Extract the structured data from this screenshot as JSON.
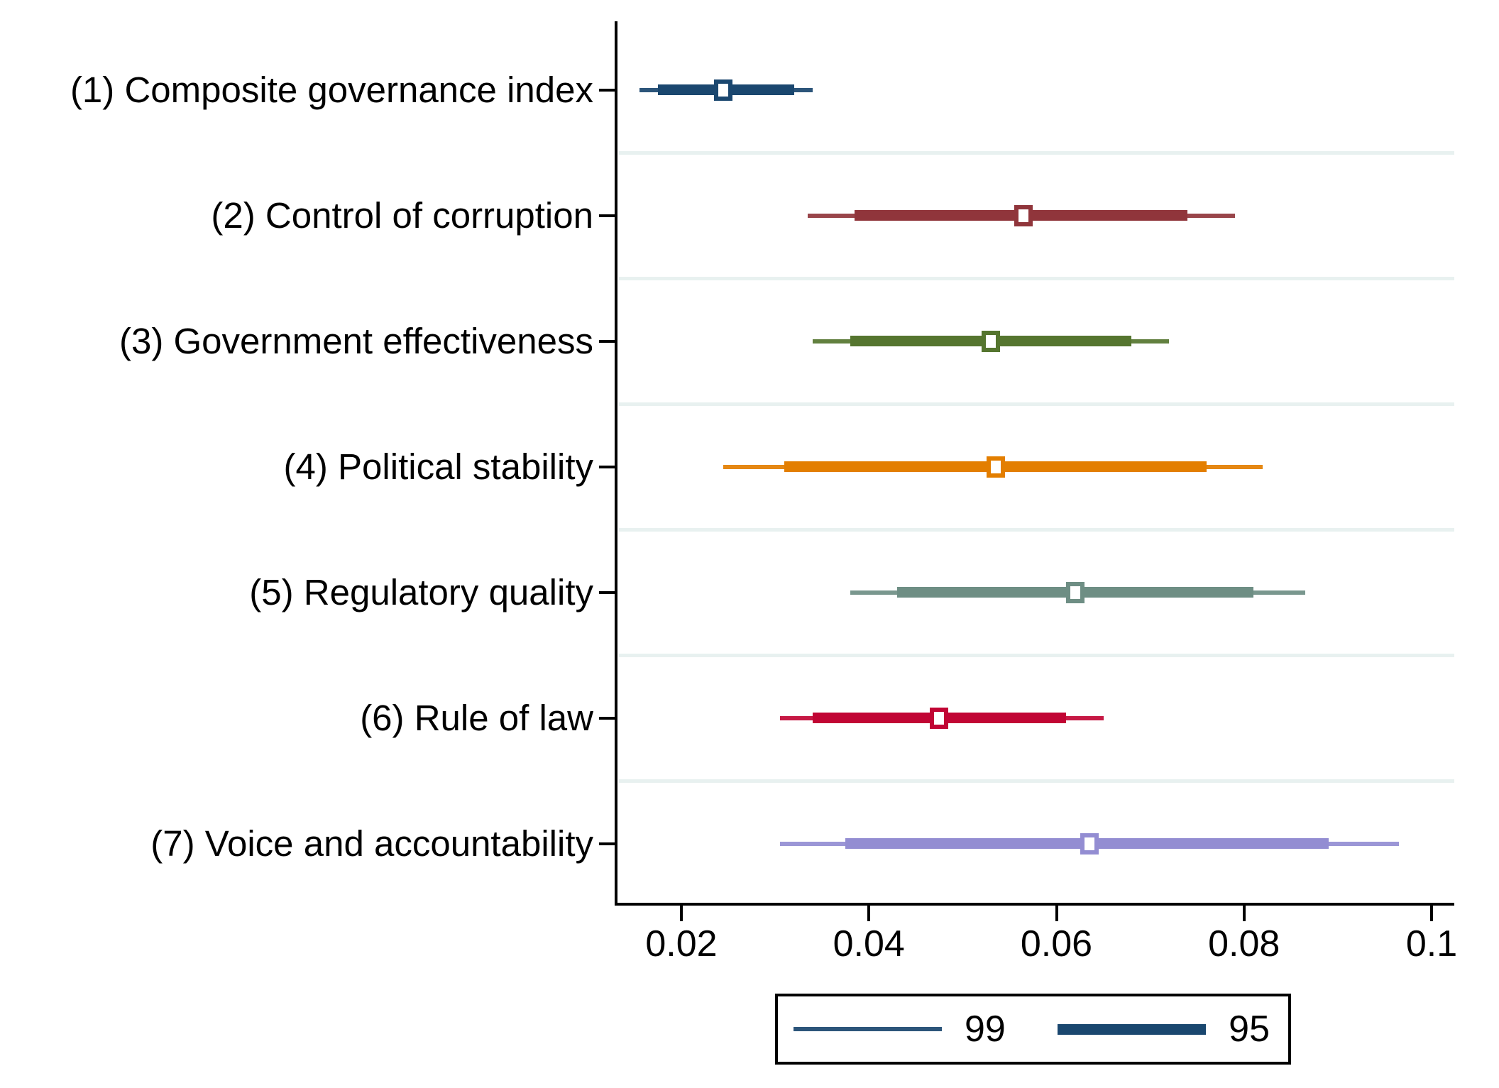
{
  "chart_data": {
    "type": "scatter",
    "subtype": "horizontal dot plot of coefficient estimates with 95% and 99% confidence intervals",
    "title": "",
    "xlabel": "",
    "ylabel": "",
    "categories": [
      "(1) Composite governance index",
      "(2) Control of corruption",
      "(3) Government effectiveness",
      "(4) Political stability",
      "(5) Regulatory quality",
      "(6) Rule of law",
      "(7) Voice and accountability"
    ],
    "rows": [
      {
        "label": "(1) Composite governance index",
        "color": "#1a476f",
        "estimate": 0.0245,
        "ci95": [
          0.0175,
          0.032
        ],
        "ci99": [
          0.0155,
          0.034
        ]
      },
      {
        "label": "(2) Control of corruption",
        "color": "#90353b",
        "estimate": 0.0565,
        "ci95": [
          0.0385,
          0.074
        ],
        "ci99": [
          0.0335,
          0.079
        ]
      },
      {
        "label": "(3) Government effectiveness",
        "color": "#55752f",
        "estimate": 0.053,
        "ci95": [
          0.038,
          0.068
        ],
        "ci99": [
          0.034,
          0.072
        ]
      },
      {
        "label": "(4) Political stability",
        "color": "#e37e00",
        "estimate": 0.0535,
        "ci95": [
          0.031,
          0.076
        ],
        "ci99": [
          0.0245,
          0.082
        ]
      },
      {
        "label": "(5) Regulatory quality",
        "color": "#6e8e84",
        "estimate": 0.062,
        "ci95": [
          0.043,
          0.081
        ],
        "ci99": [
          0.038,
          0.0865
        ]
      },
      {
        "label": "(6) Rule of law",
        "color": "#c10534",
        "estimate": 0.0475,
        "ci95": [
          0.034,
          0.061
        ],
        "ci99": [
          0.0305,
          0.065
        ]
      },
      {
        "label": "(7) Voice and accountability",
        "color": "#938dd2",
        "estimate": 0.0635,
        "ci95": [
          0.0375,
          0.089
        ],
        "ci99": [
          0.0305,
          0.0965
        ]
      }
    ],
    "xticks": [
      0.02,
      0.04,
      0.06,
      0.08,
      0.1
    ],
    "xtick_labels": [
      "0.02",
      "0.04",
      "0.06",
      "0.08",
      "0.1"
    ],
    "xlim": [
      0.013,
      0.102
    ],
    "grid": "light horizontal gridlines between categories",
    "legend": {
      "position": "bottom-center",
      "color": "#1a476f",
      "entries": [
        {
          "label": "99",
          "line": "thin"
        },
        {
          "label": "95",
          "line": "thick"
        }
      ]
    }
  }
}
